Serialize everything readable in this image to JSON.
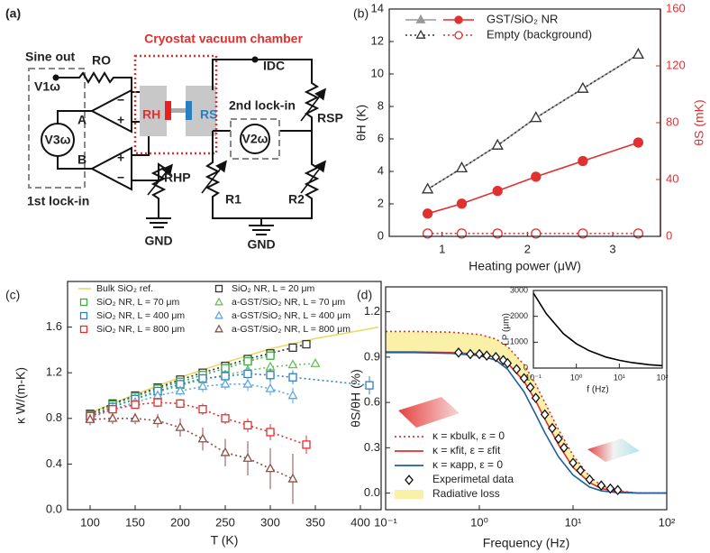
{
  "diagram": {
    "panel_label": "(a)",
    "title": "Cryostat vacuum chamber",
    "labels": {
      "sine_out": "Sine out",
      "v1w": "V1ω",
      "ro": "RO",
      "a": "A",
      "b": "B",
      "v3w": "V3ω",
      "rh": "RH",
      "rs": "RS",
      "idc": "IDC",
      "second_lockin": "2nd lock-in",
      "v2w": "V2ω",
      "rsp": "RSP",
      "rhp": "RHP",
      "r1": "R1",
      "r2": "R2",
      "gnd_left": "GND",
      "gnd_right": "GND",
      "first_lockin": "1st lock-in"
    }
  },
  "chart_data": [
    {
      "type": "line",
      "panel_label": "(b)",
      "xlabel": "Heating power (μW)",
      "ylabel": "θH (K)",
      "y2label": "θS (mK)",
      "y2color": "#e03030",
      "xlim": [
        0.38,
        3.56
      ],
      "xticks": [
        1,
        2,
        3
      ],
      "ylim": [
        0,
        14
      ],
      "yticks": [
        0,
        2,
        4,
        6,
        8,
        10,
        12,
        14
      ],
      "y2lim": [
        0,
        160
      ],
      "y2ticks": [
        0,
        40,
        80,
        120,
        160
      ],
      "legend": [
        "GST/SiO₂ NR",
        "Empty (background)"
      ],
      "legend_position": "upper left",
      "x": [
        0.83,
        1.23,
        1.65,
        2.1,
        2.65,
        3.3
      ],
      "series": [
        {
          "color": "#999999",
          "marker": "triangle",
          "filled": true,
          "linestyle": "solid",
          "values": [
            2.9,
            4.2,
            5.6,
            7.3,
            9.1,
            11.2
          ]
        },
        {
          "color": "#333333",
          "marker": "triangle",
          "filled": false,
          "linestyle": "dotted",
          "values": [
            2.9,
            4.2,
            5.6,
            7.3,
            9.1,
            11.2
          ]
        },
        {
          "color": "#e03030",
          "marker": "circle",
          "filled": true,
          "linestyle": "solid",
          "axis": "y2",
          "values": [
            16,
            23,
            32,
            42,
            53,
            66
          ]
        },
        {
          "color": "#e03030",
          "marker": "circle",
          "filled": false,
          "linestyle": "dotted",
          "axis": "y2",
          "values": [
            2,
            2,
            2,
            2,
            2,
            2
          ]
        }
      ]
    },
    {
      "type": "scatter",
      "panel_label": "(c)",
      "xlabel": "T (K)",
      "ylabel": "κ W/(m-K)",
      "xlim": [
        75,
        423
      ],
      "xticks": [
        100,
        150,
        200,
        250,
        300,
        350,
        400
      ],
      "ylim": [
        0,
        2.0
      ],
      "yticks": [
        {
          "value": 0,
          "label": "0.0"
        },
        0.4,
        0.8,
        1.2,
        1.6
      ],
      "series": [
        {
          "name": "Bulk SiO₂ ref.",
          "color": "#e8d860",
          "linestyle": "solid",
          "x": [
            95,
            100,
            150,
            200,
            250,
            300,
            350,
            400,
            420
          ],
          "values": [
            0.82,
            0.85,
            1.01,
            1.16,
            1.29,
            1.41,
            1.5,
            1.57,
            1.6
          ]
        },
        {
          "name": "SiO₂ NR, L = 20 μm",
          "color": "#333333",
          "marker": "square",
          "filled": false,
          "linestyle": "dotted",
          "x": [
            100,
            125,
            150,
            175,
            200,
            225,
            250,
            275,
            300,
            325,
            340
          ],
          "values": [
            0.84,
            0.93,
            1.0,
            1.07,
            1.14,
            1.2,
            1.26,
            1.32,
            1.37,
            1.42,
            1.45
          ]
        },
        {
          "name": "SiO₂ NR, L = 70 μm",
          "color": "#3cae3c",
          "marker": "square",
          "filled": false,
          "linestyle": "dotted",
          "x": [
            100,
            125,
            150,
            175,
            200,
            225,
            250,
            275,
            300
          ],
          "values": [
            0.83,
            0.92,
            0.99,
            1.06,
            1.12,
            1.18,
            1.24,
            1.3,
            1.35
          ]
        },
        {
          "name": "a-GST/SiO₂ NR, L = 70 μm",
          "color": "#6cc05c",
          "marker": "triangle",
          "filled": false,
          "linestyle": "dotted",
          "x": [
            100,
            125,
            150,
            175,
            200,
            225,
            250,
            275,
            300,
            325,
            350
          ],
          "values": [
            0.82,
            0.9,
            0.97,
            1.03,
            1.09,
            1.14,
            1.18,
            1.22,
            1.25,
            1.27,
            1.28
          ]
        },
        {
          "name": "SiO₂ NR, L = 400 μm",
          "color": "#2f7fc1",
          "marker": "square",
          "filled": false,
          "linestyle": "dotted",
          "x": [
            100,
            125,
            150,
            175,
            200,
            225,
            250,
            275,
            300,
            325,
            410
          ],
          "values": [
            0.82,
            0.9,
            0.97,
            1.04,
            1.1,
            1.15,
            1.17,
            1.19,
            1.18,
            1.16,
            1.09
          ],
          "errors": [
            0.03,
            0.03,
            0.03,
            0.03,
            0.04,
            0.04,
            0.05,
            0.05,
            0.06,
            0.06,
            0.08
          ]
        },
        {
          "name": "a-GST/SiO₂ NR, L = 400 μm",
          "color": "#5aa9e0",
          "marker": "triangle",
          "filled": false,
          "linestyle": "dotted",
          "x": [
            100,
            125,
            150,
            175,
            200,
            225,
            250,
            275,
            300,
            325
          ],
          "values": [
            0.8,
            0.88,
            0.94,
            1.0,
            1.04,
            1.08,
            1.1,
            1.1,
            1.06,
            1.0
          ],
          "errors": [
            0.03,
            0.03,
            0.03,
            0.04,
            0.04,
            0.05,
            0.05,
            0.06,
            0.06,
            0.07
          ]
        },
        {
          "name": "SiO₂ NR, L = 800 μm",
          "color": "#e03030",
          "marker": "square",
          "filled": false,
          "linestyle": "dotted",
          "x": [
            100,
            125,
            150,
            175,
            200,
            225,
            250,
            275,
            300,
            340
          ],
          "values": [
            0.82,
            0.88,
            0.92,
            0.94,
            0.93,
            0.88,
            0.8,
            0.74,
            0.68,
            0.57
          ],
          "errors": [
            0.03,
            0.03,
            0.03,
            0.04,
            0.04,
            0.05,
            0.05,
            0.06,
            0.07,
            0.08
          ]
        },
        {
          "name": "a-GST/SiO₂ NR, L = 800 μm",
          "color": "#8b5048",
          "marker": "triangle",
          "filled": false,
          "linestyle": "dotted",
          "x": [
            100,
            125,
            150,
            175,
            200,
            225,
            250,
            275,
            300,
            325
          ],
          "values": [
            0.79,
            0.8,
            0.8,
            0.78,
            0.72,
            0.62,
            0.5,
            0.45,
            0.36,
            0.27
          ],
          "errors": [
            0.05,
            0.05,
            0.05,
            0.06,
            0.08,
            0.1,
            0.12,
            0.15,
            0.18,
            0.22
          ]
        }
      ]
    },
    {
      "type": "line",
      "panel_label": "(d)",
      "xscale": "log",
      "xlabel": "Frequency (Hz)",
      "ylabel": "θS/θH (%)",
      "xlim": [
        0.1,
        100
      ],
      "xticks": [
        {
          "value": 0.1,
          "label": "10⁻¹"
        },
        {
          "value": 1,
          "label": "10⁰"
        },
        {
          "value": 10,
          "label": "10¹"
        },
        {
          "value": 100,
          "label": "10²"
        }
      ],
      "ylim": [
        -0.11,
        1.365
      ],
      "yticks": [
        {
          "value": 0,
          "label": "0.0"
        },
        0.3,
        0.6,
        0.9,
        1.2
      ],
      "x": [
        0.1,
        0.2,
        0.5,
        1,
        1.5,
        2,
        3,
        4,
        5,
        7,
        10,
        15,
        20,
        30,
        50,
        100
      ],
      "fill_between": {
        "name": "Radiative loss",
        "color": "#fbf0a8"
      },
      "series": [
        {
          "name": "κ = κbulk, ε = 0",
          "color": "#e03030",
          "linestyle": "dotted",
          "values": [
            1.07,
            1.07,
            1.065,
            1.05,
            1.02,
            0.97,
            0.85,
            0.72,
            0.6,
            0.42,
            0.25,
            0.11,
            0.05,
            0.015,
            0,
            0
          ]
        },
        {
          "name": "κ = κfit, ε = εfit",
          "color": "#e03030",
          "linestyle": "solid",
          "values": [
            0.935,
            0.935,
            0.93,
            0.92,
            0.9,
            0.86,
            0.74,
            0.61,
            0.49,
            0.32,
            0.17,
            0.07,
            0.03,
            0.01,
            0,
            0
          ]
        },
        {
          "name": "κ = κapp, ε = 0",
          "color": "#1f5f9f",
          "linestyle": "solid",
          "values": [
            0.93,
            0.93,
            0.925,
            0.91,
            0.88,
            0.82,
            0.67,
            0.52,
            0.4,
            0.24,
            0.12,
            0.04,
            0.015,
            0.003,
            0,
            0
          ]
        },
        {
          "name": "Experimetal data",
          "color": "#111111",
          "marker": "diamond",
          "filled": false,
          "x": [
            0.6,
            0.8,
            1,
            1.2,
            1.5,
            1.8,
            2,
            2.5,
            3,
            3.5,
            4,
            5,
            6,
            7,
            8,
            10,
            12,
            15,
            20,
            25,
            30
          ],
          "values": [
            0.93,
            0.92,
            0.92,
            0.91,
            0.9,
            0.88,
            0.86,
            0.82,
            0.76,
            0.7,
            0.63,
            0.52,
            0.43,
            0.36,
            0.3,
            0.2,
            0.15,
            0.09,
            0.05,
            0.03,
            0.02
          ]
        }
      ]
    },
    {
      "type": "line",
      "xscale": "log",
      "xlabel": "f (Hz)",
      "ylabel": "LP (μm)",
      "xlim": [
        0.1,
        100
      ],
      "xticks": [
        {
          "value": 0.1,
          "label": "10⁻¹"
        },
        {
          "value": 1,
          "label": "10⁰"
        },
        {
          "value": 10,
          "label": "10¹"
        },
        {
          "value": 100,
          "label": "10²"
        }
      ],
      "ylim": [
        0,
        3000
      ],
      "yticks": [
        0,
        1000,
        2000,
        3000
      ],
      "x": [
        0.1,
        0.2,
        0.5,
        1,
        2,
        5,
        10,
        20,
        50,
        100
      ],
      "series": [
        {
          "color": "#000000",
          "linestyle": "solid",
          "values": [
            2900,
            2100,
            1330,
            940,
            670,
            420,
            300,
            210,
            130,
            95
          ]
        }
      ]
    }
  ]
}
